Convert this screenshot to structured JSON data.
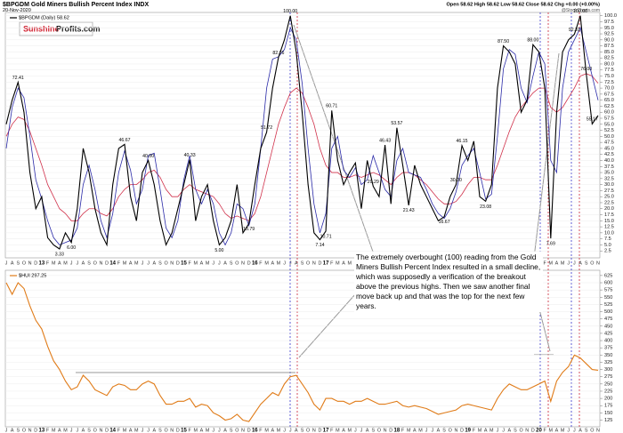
{
  "chart_data": [
    {
      "type": "line",
      "title": "$BPGDM Gold Miners Bullish Percent Index INDX",
      "subtitle": "20-Nov-2020",
      "quote": "Open 58.62 High 58.62 Low 58.62 Close 58.62 Chg +0.00 (+0.00%)",
      "source": "@StockCharts.com",
      "logo": [
        "Sunshine",
        "Profits.com"
      ],
      "annotation": "The extremely overbought (100) reading from the Gold Miners Bullish Percent Index resulted in a small decline, which was supposedly a verification of the breakout above the previous highs. Then we saw another final move back up and that was the top for the next few years.",
      "categories": [
        "J",
        "A",
        "S",
        "O",
        "N",
        "D",
        "13",
        "F",
        "M",
        "A",
        "M",
        "J",
        "J",
        "A",
        "S",
        "O",
        "N",
        "D",
        "14",
        "F",
        "M",
        "A",
        "M",
        "J",
        "J",
        "A",
        "S",
        "O",
        "N",
        "D",
        "15",
        "F",
        "M",
        "A",
        "M",
        "J",
        "J",
        "A",
        "S",
        "O",
        "N",
        "D",
        "16",
        "F",
        "M",
        "A",
        "M",
        "J",
        "J",
        "A",
        "S",
        "O",
        "N",
        "D",
        "17",
        "F",
        "M",
        "A",
        "M",
        "J",
        "J",
        "A",
        "S",
        "O",
        "N",
        "D",
        "18",
        "F",
        "M",
        "A",
        "M",
        "J",
        "J",
        "A",
        "S",
        "O",
        "N",
        "D",
        "19",
        "F",
        "M",
        "A",
        "M",
        "J",
        "J",
        "A",
        "S",
        "O",
        "N",
        "D",
        "20",
        "F",
        "M",
        "A",
        "M",
        "J",
        "J",
        "A",
        "S",
        "O",
        "N"
      ],
      "series": [
        {
          "name": "$BPGDM (Daily) 58.62",
          "color": "#000000",
          "values": [
            55,
            65,
            72.41,
            60,
            35,
            20,
            25,
            8,
            5,
            3.33,
            10,
            6,
            20,
            45,
            35,
            20,
            10,
            5,
            30,
            45,
            46.67,
            25,
            15,
            35,
            40,
            30,
            15,
            5,
            10,
            20,
            30,
            40.33,
            15,
            25,
            30,
            15,
            5,
            8,
            15,
            30,
            10,
            13.79,
            30,
            45,
            51.72,
            70,
            82.76,
            90,
            100,
            85,
            60,
            30,
            10,
            7.14,
            10.71,
            60.71,
            40,
            30,
            35,
            39,
            20,
            40,
            29.29,
            25,
            46.43,
            22,
            53.57,
            38,
            21.43,
            38,
            30,
            25,
            20,
            15,
            16.67,
            25,
            30,
            46.15,
            40,
            48,
            25,
            23.08,
            30,
            70,
            87.5,
            85,
            80,
            60,
            65,
            88,
            85,
            70,
            7.69,
            60,
            85,
            90,
            92.31,
            100,
            76,
            55.17,
            58.62
          ],
          "value_labels": [
            null,
            null,
            "72.41",
            null,
            null,
            null,
            null,
            null,
            null,
            "3.33",
            null,
            "6.00",
            null,
            null,
            null,
            null,
            null,
            null,
            null,
            null,
            "46.67",
            null,
            null,
            null,
            "40.00",
            null,
            null,
            null,
            null,
            null,
            null,
            "40.33",
            null,
            null,
            null,
            null,
            "5.00",
            null,
            null,
            null,
            null,
            "13.79",
            null,
            null,
            "51.72",
            null,
            "82.76",
            null,
            "100.00",
            null,
            null,
            null,
            null,
            "7.14",
            "10.71",
            "60.71",
            null,
            null,
            null,
            null,
            null,
            null,
            "29.29",
            null,
            "46.43",
            null,
            "53.57",
            null,
            "21.43",
            null,
            null,
            null,
            null,
            null,
            "16.67",
            null,
            "30.00",
            "46.15",
            null,
            null,
            null,
            "23.08",
            null,
            null,
            "87.50",
            null,
            null,
            null,
            null,
            "88.00",
            null,
            null,
            "7.69",
            null,
            null,
            null,
            "92.31",
            "100.00",
            "76.00",
            "55.17",
            null
          ]
        },
        {
          "color": "#2a2aa8",
          "values": [
            45,
            62,
            70,
            66,
            50,
            32,
            24,
            15,
            8,
            5,
            6,
            7,
            12,
            30,
            38,
            28,
            15,
            8,
            18,
            35,
            44,
            36,
            22,
            28,
            42,
            43,
            28,
            12,
            8,
            15,
            32,
            42,
            28,
            22,
            28,
            22,
            10,
            5,
            10,
            22,
            20,
            13,
            22,
            45,
            70,
            82,
            83,
            86,
            95,
            90,
            72,
            45,
            22,
            10,
            18,
            45,
            50,
            36,
            33,
            37,
            30,
            32,
            42,
            35,
            28,
            25,
            40,
            45,
            35,
            34,
            33,
            28,
            22,
            18,
            16,
            20,
            27,
            38,
            42,
            45,
            35,
            24,
            26,
            50,
            78,
            86,
            84,
            70,
            64,
            75,
            85,
            80,
            40,
            35,
            70,
            85,
            90,
            95,
            85,
            75,
            65
          ]
        },
        {
          "color": "#d0304a",
          "values": [
            50,
            55,
            58,
            57,
            52,
            45,
            38,
            30,
            25,
            20,
            18,
            15,
            15,
            18,
            20,
            20,
            18,
            17,
            20,
            25,
            28,
            30,
            30,
            32,
            35,
            36,
            33,
            28,
            25,
            25,
            28,
            30,
            28,
            27,
            26,
            25,
            22,
            18,
            16,
            17,
            16,
            15,
            18,
            25,
            35,
            45,
            55,
            62,
            68,
            70,
            68,
            62,
            55,
            45,
            38,
            35,
            35,
            33,
            33,
            34,
            33,
            34,
            35,
            34,
            32,
            30,
            33,
            35,
            35,
            34,
            32,
            30,
            27,
            24,
            22,
            22,
            23,
            26,
            30,
            33,
            33,
            32,
            32,
            38,
            45,
            52,
            58,
            62,
            65,
            68,
            70,
            70,
            62,
            60,
            62,
            66,
            70,
            75,
            76,
            75,
            72
          ]
        }
      ],
      "ylim": [
        0,
        101
      ],
      "yticks": [
        2.5,
        {
          "value": 5,
          "label": "5.0"
        },
        7.5,
        {
          "value": 10,
          "label": "10.0"
        },
        12.5,
        {
          "value": 15,
          "label": "15.0"
        },
        17.5,
        {
          "value": 20,
          "label": "20.0"
        },
        22.5,
        {
          "value": 25,
          "label": "25.0"
        },
        27.5,
        {
          "value": 30,
          "label": "30.0"
        },
        32.5,
        {
          "value": 35,
          "label": "35.0"
        },
        37.5,
        {
          "value": 40,
          "label": "40.0"
        },
        42.5,
        {
          "value": 45,
          "label": "45.0"
        },
        47.5,
        {
          "value": 50,
          "label": "50.0"
        },
        52.5,
        {
          "value": 55,
          "label": "55.0"
        },
        57.5,
        {
          "value": 60,
          "label": "60.0"
        },
        62.5,
        {
          "value": 65,
          "label": "65.0"
        },
        67.5,
        {
          "value": 70,
          "label": "70.0"
        },
        72.5,
        {
          "value": 75,
          "label": "75.0"
        },
        77.5,
        {
          "value": 80,
          "label": "80.0"
        },
        82.5,
        {
          "value": 85,
          "label": "85.0"
        },
        87.5,
        {
          "value": 90,
          "label": "90.0"
        },
        92.5,
        {
          "value": 95,
          "label": "95.0"
        },
        97.5,
        {
          "value": 100,
          "label": "100.0"
        }
      ],
      "grid": true
    },
    {
      "type": "line",
      "categories": [
        "J",
        "A",
        "S",
        "O",
        "N",
        "D",
        "13",
        "F",
        "M",
        "A",
        "M",
        "J",
        "J",
        "A",
        "S",
        "O",
        "N",
        "D",
        "14",
        "F",
        "M",
        "A",
        "M",
        "J",
        "J",
        "A",
        "S",
        "O",
        "N",
        "D",
        "15",
        "F",
        "M",
        "A",
        "M",
        "J",
        "J",
        "A",
        "S",
        "O",
        "N",
        "D",
        "16",
        "F",
        "M",
        "A",
        "M",
        "J",
        "J",
        "A",
        "S",
        "O",
        "N",
        "D",
        "17",
        "F",
        "M",
        "A",
        "M",
        "J",
        "J",
        "A",
        "S",
        "O",
        "N",
        "D",
        "18",
        "F",
        "M",
        "A",
        "M",
        "J",
        "J",
        "A",
        "S",
        "O",
        "N",
        "D",
        "19",
        "F",
        "M",
        "A",
        "M",
        "J",
        "J",
        "A",
        "S",
        "O",
        "N",
        "D",
        "20",
        "F",
        "M",
        "A",
        "M",
        "J",
        "J",
        "A",
        "S",
        "O",
        "N"
      ],
      "series": [
        {
          "name": "$HUI 297.25",
          "color": "#e07b18",
          "values": [
            600,
            560,
            600,
            580,
            520,
            470,
            440,
            380,
            330,
            300,
            260,
            230,
            240,
            280,
            260,
            230,
            220,
            210,
            240,
            250,
            245,
            230,
            230,
            250,
            260,
            250,
            210,
            180,
            180,
            190,
            190,
            200,
            170,
            180,
            175,
            150,
            140,
            125,
            130,
            145,
            125,
            120,
            150,
            180,
            200,
            220,
            210,
            250,
            275,
            280,
            250,
            220,
            180,
            160,
            200,
            200,
            190,
            190,
            180,
            190,
            190,
            200,
            190,
            180,
            180,
            185,
            190,
            175,
            170,
            175,
            170,
            165,
            155,
            145,
            150,
            155,
            160,
            175,
            180,
            175,
            170,
            165,
            160,
            200,
            230,
            250,
            240,
            230,
            230,
            240,
            250,
            260,
            190,
            260,
            290,
            310,
            350,
            340,
            320,
            300,
            297.25
          ]
        }
      ],
      "ylim": [
        105,
        640
      ],
      "yticks": [
        125,
        150,
        175,
        200,
        225,
        250,
        275,
        300,
        325,
        350,
        375,
        400,
        425,
        450,
        475,
        500,
        525,
        550,
        575,
        600,
        625
      ],
      "grid": true
    }
  ]
}
